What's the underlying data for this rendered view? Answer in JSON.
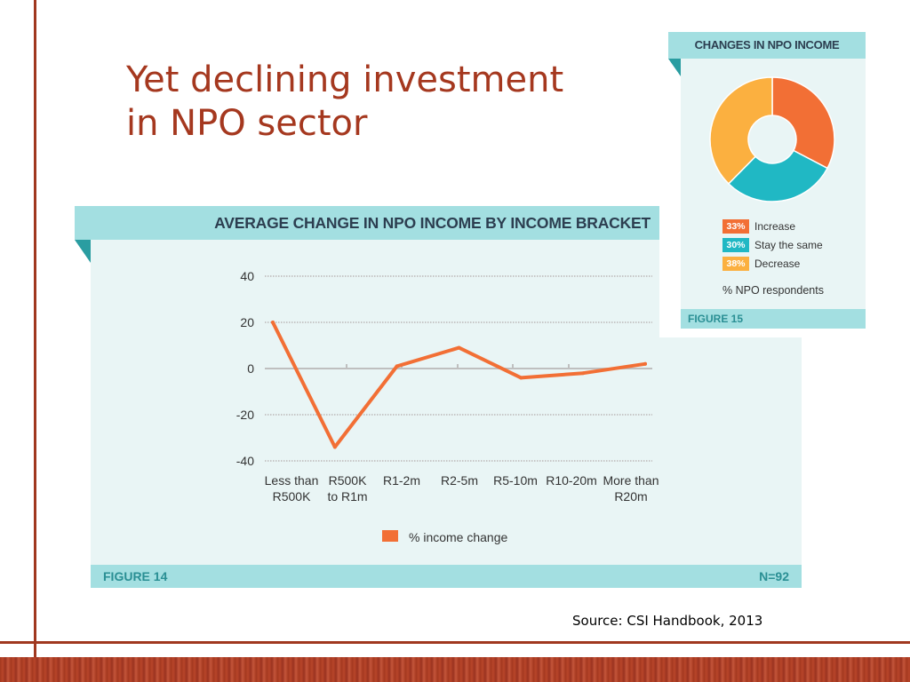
{
  "slide": {
    "title_line1": "Yet declining investment",
    "title_line2": "in NPO sector",
    "source": "Source: CSI Handbook, 2013",
    "accent_color": "#a5381f"
  },
  "figure14": {
    "header": "AVERAGE CHANGE IN NPO INCOME BY INCOME BRACKET",
    "footer_left": "FIGURE 14",
    "footer_right": "N=92"
  },
  "figure15": {
    "header": "CHANGES IN NPO INCOME",
    "footer": "FIGURE 15",
    "legend": [
      {
        "pct": "33%",
        "label": "Increase",
        "color": "#f26f35"
      },
      {
        "pct": "30%",
        "label": "Stay the same",
        "color": "#20b8c4"
      },
      {
        "pct": "38%",
        "label": "Decrease",
        "color": "#fbb040"
      }
    ],
    "respondents_label": "% NPO respondents"
  },
  "chart_data": [
    {
      "type": "line",
      "title": "AVERAGE CHANGE IN NPO INCOME BY INCOME BRACKET",
      "categories": [
        [
          "Less than",
          "R500K"
        ],
        [
          "R500K",
          "to R1m"
        ],
        [
          "R1-2m"
        ],
        [
          "R2-5m"
        ],
        [
          "R5-10m"
        ],
        [
          "R10-20m"
        ],
        [
          "More than",
          "R20m"
        ]
      ],
      "series": [
        {
          "name": "% income change",
          "values": [
            20,
            -34,
            1,
            9,
            -4,
            -2,
            2
          ],
          "color": "#f26f35"
        }
      ],
      "ylim": [
        -40,
        40
      ],
      "yticks": [
        40,
        20,
        0,
        -20,
        -40
      ],
      "grid": true,
      "legend": "bottom-center"
    },
    {
      "type": "pie",
      "title": "CHANGES IN NPO INCOME",
      "labels": [
        "Increase",
        "Stay the same",
        "Decrease"
      ],
      "values": [
        33,
        30,
        38
      ],
      "colors": [
        "#f26f35",
        "#20b8c4",
        "#fbb040"
      ],
      "donut": true
    }
  ]
}
